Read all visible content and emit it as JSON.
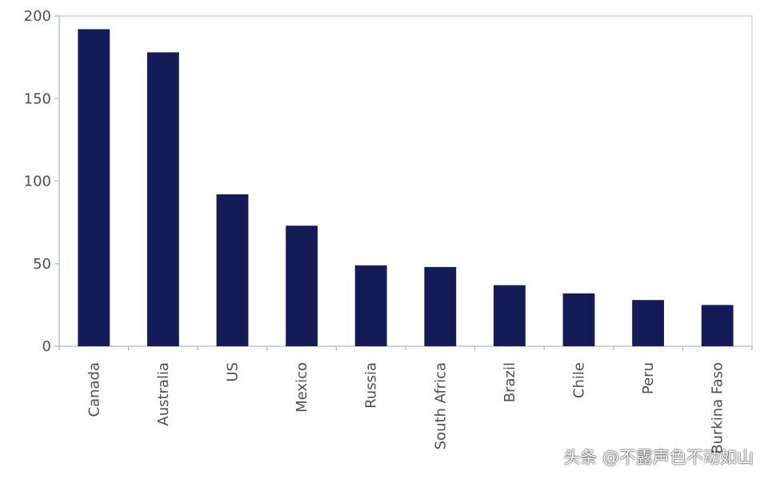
{
  "chart_data": {
    "type": "bar",
    "categories": [
      "Canada",
      "Australia",
      "US",
      "Mexico",
      "Russia",
      "South Africa",
      "Brazil",
      "Chile",
      "Peru",
      "Burkina Faso"
    ],
    "values": [
      192,
      178,
      92,
      73,
      49,
      48,
      37,
      32,
      28,
      25
    ],
    "ylim": [
      0,
      200
    ],
    "yticks": [
      0,
      50,
      100,
      150,
      200
    ],
    "bar_color": "#141b57",
    "grid": false,
    "legend": "none"
  },
  "watermark": "头条 @不露声色不动如山"
}
